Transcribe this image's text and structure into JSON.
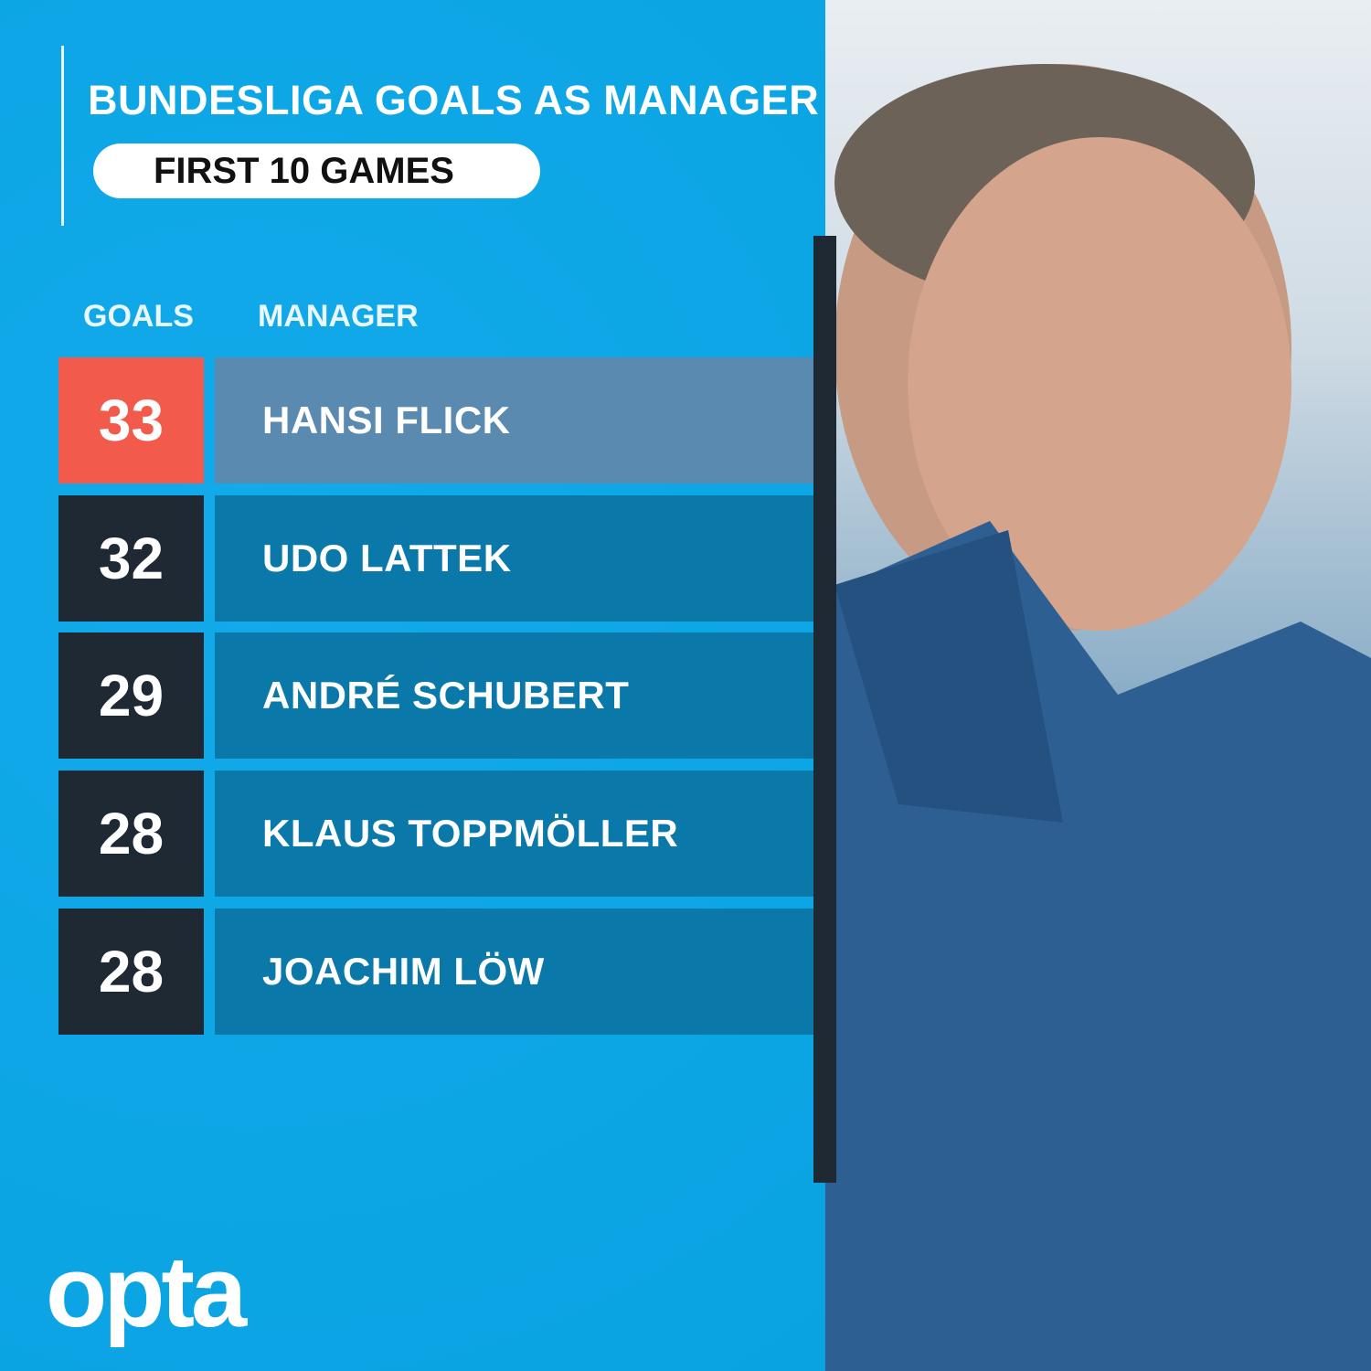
{
  "title": "BUNDESLIGA GOALS AS MANAGER",
  "subtitle": "FIRST 10 GAMES",
  "logo": "opta",
  "colors": {
    "background": "#0ea8e6",
    "highlight_goals": "#f25a4c",
    "highlight_name": "#5b8ab0",
    "goals": "#1f2934",
    "name": "#0a78a8"
  },
  "chart_data": {
    "type": "table",
    "title": "BUNDESLIGA GOALS AS MANAGER",
    "subtitle": "FIRST 10 GAMES",
    "columns": [
      "GOALS",
      "MANAGER"
    ],
    "rows": [
      {
        "goals": "33",
        "manager": "HANSI FLICK",
        "highlight": true
      },
      {
        "goals": "32",
        "manager": "UDO LATTEK"
      },
      {
        "goals": "29",
        "manager": "ANDRÉ SCHUBERT"
      },
      {
        "goals": "28",
        "manager": "KLAUS TOPPMÖLLER"
      },
      {
        "goals": "28",
        "manager": "JOACHIM LÖW"
      }
    ]
  }
}
